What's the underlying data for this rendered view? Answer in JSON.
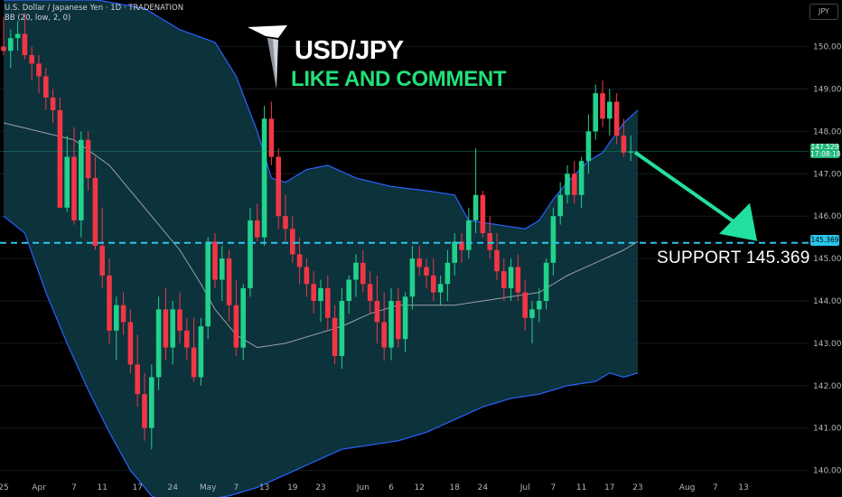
{
  "header": {
    "symbol_line": "U.S. Dollar / Japanese Yen · 1D · TRADENATION",
    "indicator_line": "BB (20, low, 2, 0)"
  },
  "currency_label": "JPY",
  "overlay": {
    "title": "USD/JPY",
    "subtitle": "LIKE AND COMMENT",
    "support_text": "SUPPORT  145.369"
  },
  "price_tags": {
    "current_price": "147.529",
    "countdown": "17:08:18",
    "support_price": "145.369"
  },
  "colors": {
    "background": "#000000",
    "up": "#22d18b",
    "down": "#f23645",
    "band_fill": "#0e3b45",
    "band_line": "#2962ff",
    "basis_line": "#9ba0a8",
    "support_line": "#2ac6ec",
    "arrow": "#22e0a0",
    "title": "#ffffff",
    "subtitle": "#22e07a"
  },
  "chart_data": {
    "type": "candlestick",
    "y_axis": {
      "ylim": [
        139.8,
        151.1
      ],
      "ticks": [
        140,
        141,
        142,
        143,
        144,
        145,
        146,
        147,
        148,
        149,
        150
      ],
      "tick_labels": [
        "140.000",
        "141.000",
        "142.000",
        "143.000",
        "144.000",
        "145.000",
        "146.000",
        "147.000",
        "148.000",
        "149.000",
        "150.000"
      ]
    },
    "x_axis": {
      "labels": [
        {
          "label": "25",
          "i": 0
        },
        {
          "label": "Apr",
          "i": 5
        },
        {
          "label": "7",
          "i": 10
        },
        {
          "label": "11",
          "i": 14
        },
        {
          "label": "17",
          "i": 19
        },
        {
          "label": "24",
          "i": 24
        },
        {
          "label": "May",
          "i": 29
        },
        {
          "label": "7",
          "i": 33
        },
        {
          "label": "13",
          "i": 37
        },
        {
          "label": "19",
          "i": 41
        },
        {
          "label": "23",
          "i": 45
        },
        {
          "label": "Jun",
          "i": 51
        },
        {
          "label": "6",
          "i": 55
        },
        {
          "label": "12",
          "i": 59
        },
        {
          "label": "18",
          "i": 64
        },
        {
          "label": "24",
          "i": 68
        },
        {
          "label": "Jul",
          "i": 74
        },
        {
          "label": "7",
          "i": 78
        },
        {
          "label": "11",
          "i": 82
        },
        {
          "label": "17",
          "i": 86
        },
        {
          "label": "23",
          "i": 90
        },
        {
          "label": "Aug",
          "i": 97
        },
        {
          "label": "7",
          "i": 101
        },
        {
          "label": "13",
          "i": 105
        }
      ],
      "total_slots": 106
    },
    "candles": [
      [
        150.0,
        150.7,
        149.8,
        149.9
      ],
      [
        149.9,
        150.4,
        149.5,
        150.2
      ],
      [
        150.2,
        150.6,
        149.9,
        150.3
      ],
      [
        150.3,
        150.8,
        149.7,
        149.8
      ],
      [
        149.8,
        150.0,
        149.2,
        149.6
      ],
      [
        149.6,
        149.8,
        148.9,
        149.3
      ],
      [
        149.3,
        149.5,
        148.5,
        148.8
      ],
      [
        148.8,
        149.0,
        148.2,
        148.5
      ],
      [
        148.5,
        148.8,
        146.2,
        146.2
      ],
      [
        146.2,
        147.9,
        146.1,
        147.4
      ],
      [
        147.4,
        148.1,
        145.8,
        145.9
      ],
      [
        145.9,
        148.0,
        145.5,
        147.8
      ],
      [
        147.8,
        148.0,
        146.6,
        146.9
      ],
      [
        146.9,
        147.4,
        145.2,
        145.3
      ],
      [
        145.3,
        146.2,
        144.3,
        144.6
      ],
      [
        144.6,
        145.0,
        143.0,
        143.3
      ],
      [
        143.3,
        144.1,
        142.6,
        143.9
      ],
      [
        143.9,
        144.2,
        143.2,
        143.5
      ],
      [
        143.5,
        143.8,
        142.3,
        142.5
      ],
      [
        142.5,
        143.2,
        141.5,
        141.8
      ],
      [
        141.8,
        142.3,
        140.7,
        141.0
      ],
      [
        141.0,
        142.5,
        140.5,
        142.2
      ],
      [
        142.2,
        144.1,
        141.9,
        143.8
      ],
      [
        143.8,
        144.3,
        142.6,
        142.9
      ],
      [
        142.9,
        144.0,
        142.5,
        143.8
      ],
      [
        143.8,
        144.2,
        143.0,
        143.3
      ],
      [
        143.3,
        143.6,
        142.6,
        142.9
      ],
      [
        142.9,
        143.6,
        142.1,
        142.2
      ],
      [
        142.2,
        143.6,
        142.0,
        143.4
      ],
      [
        143.4,
        145.5,
        143.1,
        145.4
      ],
      [
        145.4,
        145.6,
        144.3,
        144.5
      ],
      [
        144.5,
        145.3,
        144.0,
        145.0
      ],
      [
        145.0,
        145.2,
        143.5,
        143.9
      ],
      [
        143.9,
        144.5,
        142.7,
        142.9
      ],
      [
        142.9,
        144.4,
        142.6,
        144.3
      ],
      [
        144.3,
        146.2,
        144.1,
        145.9
      ],
      [
        145.9,
        146.3,
        145.4,
        145.5
      ],
      [
        145.5,
        148.6,
        145.3,
        148.3
      ],
      [
        148.3,
        148.7,
        147.2,
        147.4
      ],
      [
        147.4,
        147.6,
        145.7,
        146.0
      ],
      [
        146.0,
        146.5,
        145.4,
        145.7
      ],
      [
        145.7,
        146.0,
        144.9,
        145.1
      ],
      [
        145.1,
        145.5,
        144.4,
        144.8
      ],
      [
        144.8,
        145.0,
        144.1,
        144.4
      ],
      [
        144.4,
        144.7,
        143.7,
        144.0
      ],
      [
        144.0,
        144.5,
        143.5,
        144.3
      ],
      [
        144.3,
        144.6,
        143.3,
        143.6
      ],
      [
        143.6,
        143.9,
        142.5,
        142.7
      ],
      [
        142.7,
        144.3,
        142.4,
        144.0
      ],
      [
        144.0,
        144.6,
        143.7,
        144.5
      ],
      [
        144.5,
        145.1,
        144.1,
        144.9
      ],
      [
        144.9,
        145.2,
        144.2,
        144.4
      ],
      [
        144.4,
        144.7,
        143.7,
        144.0
      ],
      [
        144.0,
        144.6,
        143.0,
        143.5
      ],
      [
        143.5,
        144.2,
        142.6,
        142.9
      ],
      [
        142.9,
        144.3,
        142.6,
        144.0
      ],
      [
        144.0,
        144.3,
        142.9,
        143.1
      ],
      [
        143.1,
        144.2,
        142.8,
        144.1
      ],
      [
        144.1,
        145.3,
        143.8,
        145.0
      ],
      [
        145.0,
        145.3,
        144.6,
        144.8
      ],
      [
        144.8,
        145.0,
        144.3,
        144.6
      ],
      [
        144.6,
        145.0,
        144.0,
        144.2
      ],
      [
        144.2,
        144.6,
        143.9,
        144.4
      ],
      [
        144.4,
        145.2,
        144.0,
        144.9
      ],
      [
        144.9,
        145.6,
        144.6,
        145.4
      ],
      [
        145.4,
        145.6,
        144.9,
        145.2
      ],
      [
        145.2,
        146.2,
        145.0,
        145.9
      ],
      [
        145.9,
        147.6,
        145.6,
        146.5
      ],
      [
        146.5,
        146.6,
        145.5,
        145.6
      ],
      [
        145.6,
        146.0,
        145.0,
        145.2
      ],
      [
        145.2,
        145.6,
        144.5,
        144.7
      ],
      [
        144.7,
        145.0,
        144.0,
        144.3
      ],
      [
        144.3,
        145.0,
        144.0,
        144.8
      ],
      [
        144.8,
        145.1,
        144.0,
        144.2
      ],
      [
        144.2,
        144.5,
        143.3,
        143.6
      ],
      [
        143.6,
        144.0,
        143.0,
        143.8
      ],
      [
        143.8,
        144.3,
        143.5,
        144.0
      ],
      [
        144.0,
        145.0,
        143.8,
        144.9
      ],
      [
        144.9,
        146.2,
        144.6,
        146.0
      ],
      [
        146.0,
        146.8,
        145.8,
        146.5
      ],
      [
        146.5,
        147.2,
        146.3,
        147.0
      ],
      [
        147.0,
        147.3,
        146.3,
        146.5
      ],
      [
        146.5,
        147.4,
        146.2,
        147.3
      ],
      [
        147.3,
        148.4,
        147.0,
        148.0
      ],
      [
        148.0,
        149.1,
        147.8,
        148.9
      ],
      [
        148.9,
        149.2,
        148.1,
        148.3
      ],
      [
        148.3,
        149.0,
        147.9,
        148.7
      ],
      [
        148.7,
        148.9,
        147.7,
        147.9
      ],
      [
        147.9,
        148.3,
        147.4,
        147.5
      ],
      [
        147.5,
        147.9,
        147.3,
        147.529
      ]
    ],
    "bollinger": {
      "upper": [
        [
          0,
          151.1
        ],
        [
          10,
          151.2
        ],
        [
          20,
          150.9
        ],
        [
          25,
          150.4
        ],
        [
          30,
          150.1
        ],
        [
          33,
          149.3
        ],
        [
          36,
          148.0
        ],
        [
          38,
          146.9
        ],
        [
          40,
          146.8
        ],
        [
          43,
          147.1
        ],
        [
          46,
          147.2
        ],
        [
          50,
          146.9
        ],
        [
          55,
          146.7
        ],
        [
          60,
          146.6
        ],
        [
          64,
          146.5
        ],
        [
          66,
          145.9
        ],
        [
          70,
          145.8
        ],
        [
          74,
          145.7
        ],
        [
          76,
          145.9
        ],
        [
          78,
          146.4
        ],
        [
          80,
          146.8
        ],
        [
          83,
          147.3
        ],
        [
          85,
          147.5
        ],
        [
          88,
          148.2
        ],
        [
          90,
          148.5
        ]
      ],
      "basis": [
        [
          0,
          148.2
        ],
        [
          5,
          148.0
        ],
        [
          10,
          147.8
        ],
        [
          15,
          147.2
        ],
        [
          20,
          146.2
        ],
        [
          25,
          145.2
        ],
        [
          28,
          144.4
        ],
        [
          30,
          143.8
        ],
        [
          33,
          143.2
        ],
        [
          36,
          142.9
        ],
        [
          40,
          143.0
        ],
        [
          44,
          143.2
        ],
        [
          48,
          143.4
        ],
        [
          52,
          143.7
        ],
        [
          56,
          143.9
        ],
        [
          60,
          143.9
        ],
        [
          64,
          143.9
        ],
        [
          68,
          144.0
        ],
        [
          72,
          144.1
        ],
        [
          76,
          144.2
        ],
        [
          80,
          144.6
        ],
        [
          84,
          144.9
        ],
        [
          88,
          145.2
        ],
        [
          90,
          145.4
        ]
      ],
      "lower": [
        [
          0,
          146.0
        ],
        [
          3,
          145.6
        ],
        [
          6,
          144.2
        ],
        [
          9,
          143.0
        ],
        [
          12,
          141.9
        ],
        [
          15,
          140.9
        ],
        [
          18,
          140.0
        ],
        [
          21,
          139.4
        ],
        [
          24,
          139.2
        ],
        [
          28,
          139.3
        ],
        [
          32,
          139.4
        ],
        [
          36,
          139.6
        ],
        [
          40,
          139.9
        ],
        [
          44,
          140.2
        ],
        [
          48,
          140.5
        ],
        [
          52,
          140.6
        ],
        [
          56,
          140.7
        ],
        [
          60,
          140.9
        ],
        [
          64,
          141.2
        ],
        [
          68,
          141.5
        ],
        [
          72,
          141.7
        ],
        [
          76,
          141.8
        ],
        [
          80,
          142.0
        ],
        [
          84,
          142.1
        ],
        [
          86,
          142.3
        ],
        [
          88,
          142.2
        ],
        [
          90,
          142.3
        ]
      ]
    },
    "current_price": 147.529,
    "support_level": 145.369
  }
}
